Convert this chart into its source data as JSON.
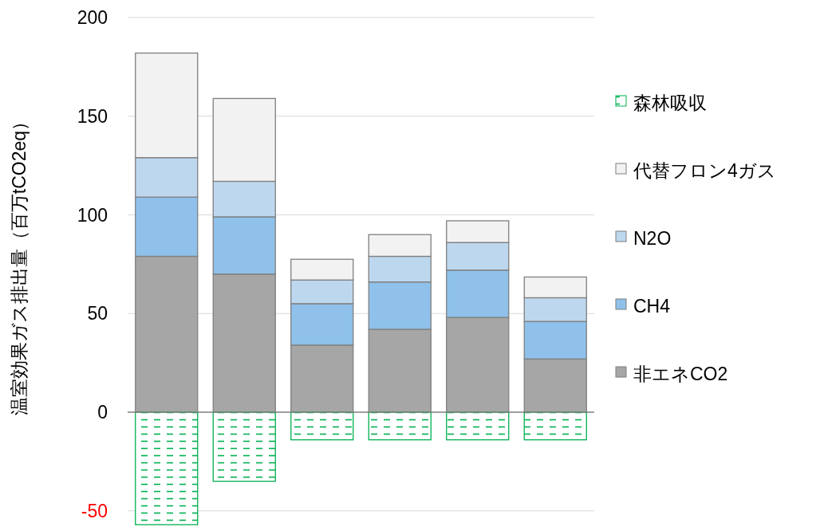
{
  "chart_data": {
    "type": "bar",
    "stacked": true,
    "ylabel": "温室効果ガス排出量（百万tCO2eq）",
    "categories": [
      null,
      null,
      null,
      null,
      null,
      null
    ],
    "series": [
      {
        "name": "非エネCO2",
        "color": "#a6a6a6",
        "values": [
          79,
          70,
          34,
          42,
          48,
          27
        ]
      },
      {
        "name": "CH4",
        "color": "#8fc1ea",
        "values": [
          30,
          29,
          21,
          24,
          24,
          19
        ]
      },
      {
        "name": "N2O",
        "color": "#bdd7ee",
        "values": [
          20,
          18,
          12,
          13,
          14,
          12
        ]
      },
      {
        "name": "代替フロン4ガス",
        "color": "#f2f2f2",
        "values": [
          53,
          42,
          10.5,
          11,
          11,
          10.5
        ]
      },
      {
        "name": "森林吸収",
        "color": "#00b050",
        "values": [
          -57,
          -35,
          -14,
          -14,
          -14,
          -14
        ]
      }
    ],
    "ylim": [
      -58,
      200
    ],
    "yticks": [
      -50,
      0,
      50,
      100,
      150,
      200
    ],
    "grid": "y",
    "legend": "right",
    "tick_labels": "y"
  }
}
